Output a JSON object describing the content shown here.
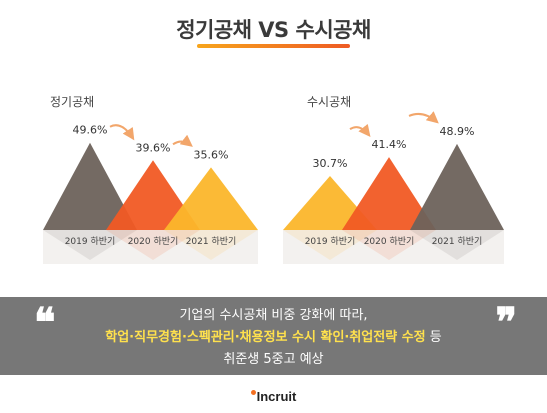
{
  "title": "정기공채 VS 수시공채",
  "colors": {
    "brown": "#6d625b",
    "red": "#f15a24",
    "yellow": "#fbb62b",
    "accent_gradient_start": "#f7a51c",
    "accent_gradient_end": "#ee5a24",
    "arrow": "#f2a66b",
    "quote_bg": "#777777",
    "highlight": "#ffe14d"
  },
  "chart_data": [
    {
      "type": "area",
      "title": "정기공채",
      "categories": [
        "2019 하반기",
        "2020 하반기",
        "2021 하반기"
      ],
      "values": [
        49.6,
        39.6,
        35.6
      ],
      "value_labels": [
        "49.6%",
        "39.6%",
        "35.6%"
      ],
      "series_colors": [
        "#6d625b",
        "#f15a24",
        "#fbb62b"
      ],
      "trend_arrows": true
    },
    {
      "type": "area",
      "title": "수시공채",
      "categories": [
        "2019 하반기",
        "2020 하반기",
        "2021 하반기"
      ],
      "values": [
        30.7,
        41.4,
        48.9
      ],
      "value_labels": [
        "30.7%",
        "41.4%",
        "48.9%"
      ],
      "series_colors": [
        "#fbb62b",
        "#f15a24",
        "#6d625b"
      ],
      "trend_arrows": true
    }
  ],
  "quote": {
    "open_mark": "❝",
    "close_mark": "❞",
    "line1": "기업의 수시공채 비중 강화에 따라,",
    "line2_highlight": "학업·직무경험·스펙관리·채용정보 수시 확인·취업전략 수정",
    "line2_suffix": " 등",
    "line3": "취준생 5중고 예상"
  },
  "brand": "Incruit"
}
